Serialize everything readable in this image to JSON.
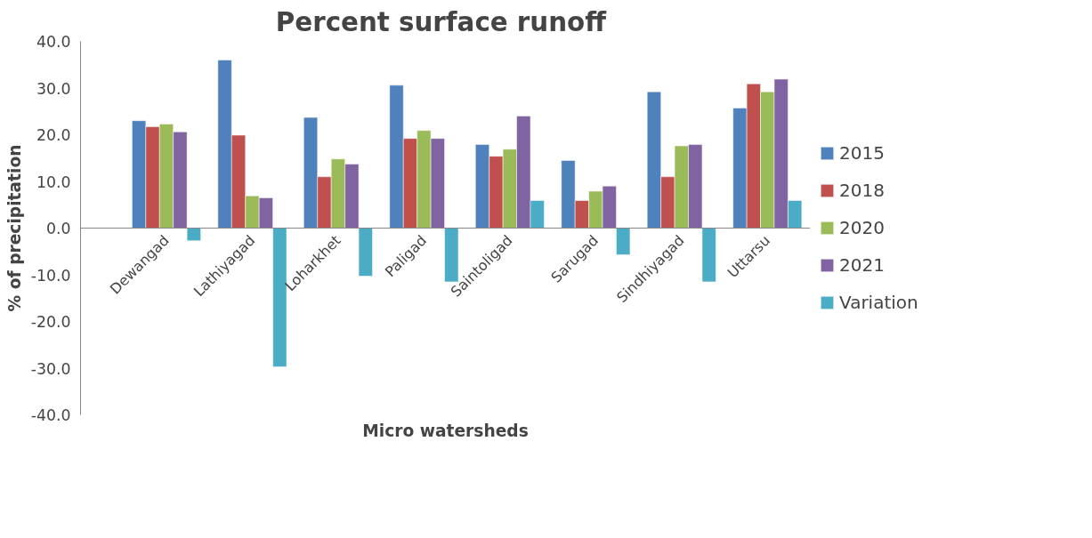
{
  "chart_data": {
    "type": "bar",
    "title": "Percent surface  runoff",
    "xlabel": "Micro watersheds",
    "ylabel": "% of precipitation",
    "categories": [
      "Dewangad",
      "Lathiyagad",
      "Loharkhet",
      "Paligad",
      "Saintoligad",
      "Sarugad",
      "Sindhiyagad",
      "Uttarsu"
    ],
    "series": [
      {
        "name": "2015",
        "color": "#4f81bd",
        "values": [
          23.0,
          36.0,
          23.7,
          30.6,
          17.9,
          14.5,
          29.2,
          25.7
        ]
      },
      {
        "name": "2018",
        "color": "#c0504d",
        "values": [
          21.7,
          19.9,
          11.0,
          19.2,
          15.4,
          5.9,
          11.0,
          30.9
        ]
      },
      {
        "name": "2020",
        "color": "#9bbb59",
        "values": [
          22.3,
          6.9,
          14.8,
          20.9,
          16.9,
          7.9,
          17.6,
          29.2
        ]
      },
      {
        "name": "2021",
        "color": "#8064a2",
        "values": [
          20.6,
          6.5,
          13.7,
          19.2,
          24.0,
          9.0,
          17.9,
          31.9
        ]
      },
      {
        "name": "Variation",
        "color": "#4bacc6",
        "values": [
          -2.7,
          -29.7,
          -10.3,
          -11.5,
          5.9,
          -5.7,
          -11.5,
          5.9
        ]
      }
    ],
    "ylim": [
      -40,
      40
    ],
    "yticks": [
      {
        "value": -40,
        "label": "-40.0"
      },
      {
        "value": -30,
        "label": "-30.0"
      },
      {
        "value": -20,
        "label": "-20.0"
      },
      {
        "value": -10,
        "label": "-10.0"
      },
      {
        "value": 0,
        "label": "0.0"
      },
      {
        "value": 10,
        "label": "10.0"
      },
      {
        "value": 20,
        "label": "20.0"
      },
      {
        "value": 30,
        "label": "30.0"
      },
      {
        "value": 40,
        "label": "40.0"
      }
    ],
    "grid": false,
    "legend": "right"
  }
}
